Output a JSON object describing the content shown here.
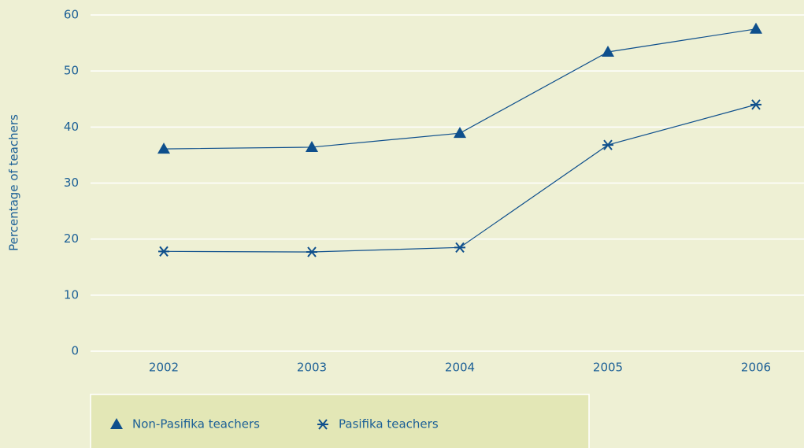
{
  "chart_data": {
    "type": "line",
    "y_label": "Percentage of teachers",
    "categories": [
      "2002",
      "2003",
      "2004",
      "2005",
      "2006"
    ],
    "series": [
      {
        "name": "Non-Pasifika teachers",
        "color": "#0e4f8c",
        "marker": "triangle",
        "values": [
          36.1,
          36.4,
          38.9,
          53.4,
          57.5
        ]
      },
      {
        "name": "Pasifika teachers",
        "color": "#0e4f8c",
        "marker": "asterisk",
        "values": [
          17.8,
          17.7,
          18.5,
          36.8,
          44
        ]
      }
    ],
    "ylim": [
      0,
      60
    ],
    "yticks": [
      0,
      10,
      20,
      30,
      40,
      50,
      60
    ],
    "grid": true,
    "legend": "bottom"
  }
}
